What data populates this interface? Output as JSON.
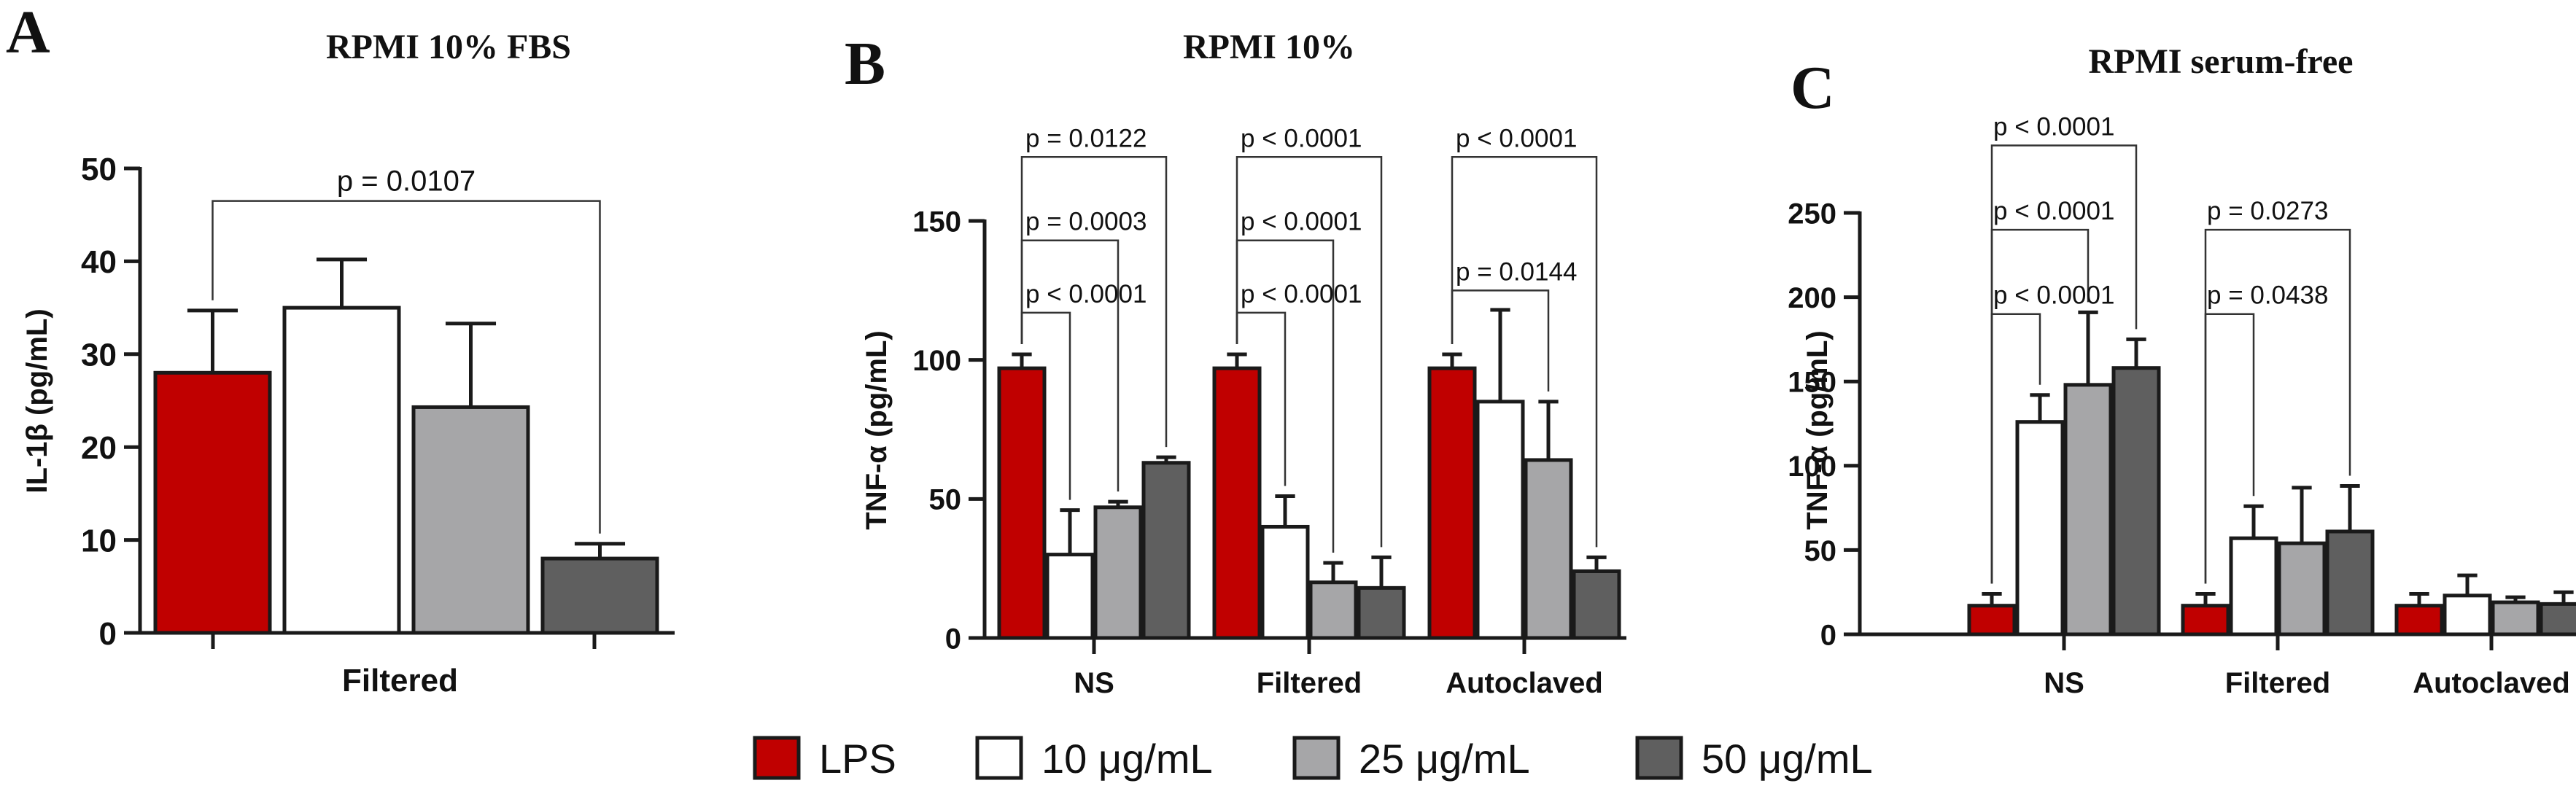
{
  "colors": {
    "LPS": "#c00000",
    "10 μg/mL": "#ffffff",
    "25 μg/mL": "#a6a6a8",
    "50 μg/mL": "#5f5f5f",
    "outline": "#1a1a1a"
  },
  "legend": {
    "items": [
      {
        "label": "LPS",
        "color_key": "LPS"
      },
      {
        "label": "10 μg/mL",
        "color_key": "10 μg/mL"
      },
      {
        "label": "25 μg/mL",
        "color_key": "25 μg/mL"
      },
      {
        "label": "50 μg/mL",
        "color_key": "50 μg/mL"
      }
    ]
  },
  "chart_data": [
    {
      "panel": "A",
      "type": "bar",
      "title": "RPMI 10% FBS",
      "ylabel": "IL-1β (pg/mL)",
      "xlabel": "",
      "ylim": [
        0,
        50
      ],
      "yticks": [
        "0",
        "10",
        "20",
        "30",
        "40",
        "50"
      ],
      "ytick_values": [
        0,
        10,
        20,
        30,
        40,
        50
      ],
      "categories": [
        "Filtered"
      ],
      "series": [
        {
          "name": "LPS",
          "values": [
            28.0
          ],
          "errors": [
            6.7
          ]
        },
        {
          "name": "10 μg/mL",
          "values": [
            35.0
          ],
          "errors": [
            5.2
          ]
        },
        {
          "name": "25 μg/mL",
          "values": [
            24.3
          ],
          "errors": [
            9.0
          ]
        },
        {
          "name": "50 μg/mL",
          "values": [
            8.0
          ],
          "errors": [
            1.6
          ]
        }
      ],
      "annotations": [
        {
          "text": "p = 0.0107",
          "group": 0,
          "from": 0,
          "to": 3,
          "y": 46.5
        }
      ]
    },
    {
      "panel": "B",
      "type": "bar",
      "title": "RPMI 10%",
      "ylabel": "TNF-α (pg/mL)",
      "xlabel": "",
      "ylim": [
        0,
        150
      ],
      "yticks": [
        "0",
        "50",
        "100",
        "150"
      ],
      "ytick_values": [
        0,
        50,
        100,
        150
      ],
      "categories": [
        "NS",
        "Filtered",
        "Autoclaved"
      ],
      "series": [
        {
          "name": "LPS",
          "values": [
            97,
            97,
            97
          ],
          "errors": [
            5,
            5,
            5
          ]
        },
        {
          "name": "10 μg/mL",
          "values": [
            30,
            40,
            85
          ],
          "errors": [
            16,
            11,
            33
          ]
        },
        {
          "name": "25 μg/mL",
          "values": [
            47,
            20,
            64
          ],
          "errors": [
            2,
            7,
            21
          ]
        },
        {
          "name": "50 μg/mL",
          "values": [
            63,
            18,
            24
          ],
          "errors": [
            2,
            11,
            5
          ]
        }
      ],
      "annotations": [
        {
          "text": "p = 0.0122",
          "group": 0,
          "from": 0,
          "to": 3,
          "y": 173
        },
        {
          "text": "p = 0.0003",
          "group": 0,
          "from": 0,
          "to": 2,
          "y": 143
        },
        {
          "text": "p < 0.0001",
          "group": 0,
          "from": 0,
          "to": 1,
          "y": 117
        },
        {
          "text": "p < 0.0001",
          "group": 1,
          "from": 0,
          "to": 3,
          "y": 173
        },
        {
          "text": "p < 0.0001",
          "group": 1,
          "from": 0,
          "to": 2,
          "y": 143
        },
        {
          "text": "p < 0.0001",
          "group": 1,
          "from": 0,
          "to": 1,
          "y": 117
        },
        {
          "text": "p < 0.0001",
          "group": 2,
          "from": 0,
          "to": 3,
          "y": 173
        },
        {
          "text": "p = 0.0144",
          "group": 2,
          "from": 0,
          "to": 2,
          "y": 125
        }
      ]
    },
    {
      "panel": "C",
      "type": "bar",
      "title": "RPMI serum-free",
      "ylabel": "TNF-α (pg/mL)",
      "xlabel": "",
      "ylim": [
        0,
        250
      ],
      "yticks": [
        "0",
        "50",
        "100",
        "150",
        "200",
        "250"
      ],
      "ytick_values": [
        0,
        50,
        100,
        150,
        200,
        250
      ],
      "categories": [
        "NS",
        "Filtered",
        "Autoclaved"
      ],
      "series": [
        {
          "name": "LPS",
          "values": [
            17,
            17,
            17
          ],
          "errors": [
            7,
            7,
            7
          ]
        },
        {
          "name": "10 μg/mL",
          "values": [
            126,
            57,
            23
          ],
          "errors": [
            16,
            19,
            12
          ]
        },
        {
          "name": "25 μg/mL",
          "values": [
            148,
            54,
            19
          ],
          "errors": [
            43,
            33,
            3
          ]
        },
        {
          "name": "50 μg/mL",
          "values": [
            158,
            61,
            18
          ],
          "errors": [
            17,
            27,
            7
          ]
        }
      ],
      "annotations": [
        {
          "text": "p < 0.0001",
          "group": 0,
          "from": 0,
          "to": 3,
          "y": 290
        },
        {
          "text": "p < 0.0001",
          "group": 0,
          "from": 0,
          "to": 2,
          "y": 240
        },
        {
          "text": "p < 0.0001",
          "group": 0,
          "from": 0,
          "to": 1,
          "y": 190
        },
        {
          "text": "p = 0.0273",
          "group": 1,
          "from": 0,
          "to": 3,
          "y": 240
        },
        {
          "text": "p = 0.0438",
          "group": 1,
          "from": 0,
          "to": 1,
          "y": 190
        }
      ]
    }
  ]
}
